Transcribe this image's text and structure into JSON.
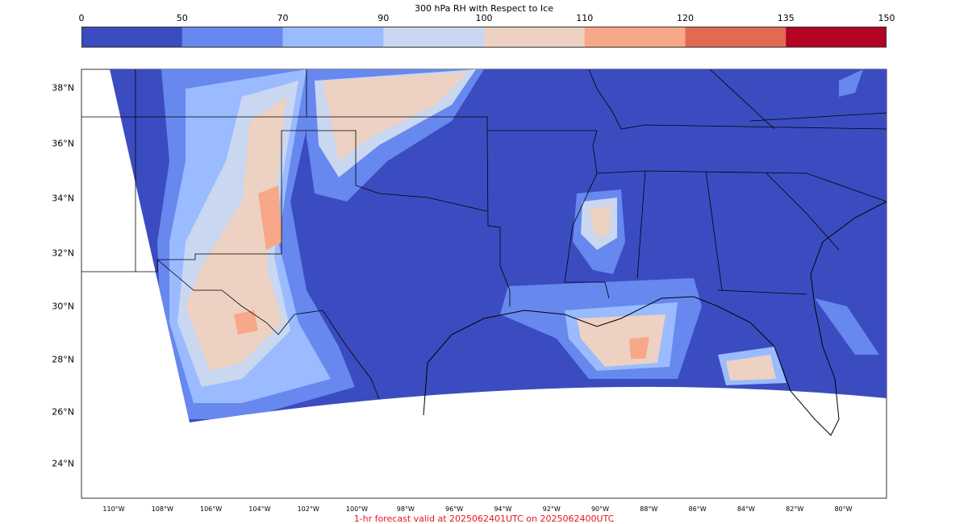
{
  "colorbar": {
    "title": "300 hPa RH with Respect to Ice",
    "ticks": [
      "0",
      "50",
      "70",
      "90",
      "100",
      "110",
      "120",
      "135",
      "150"
    ],
    "colors": [
      "#3b4cc0",
      "#6788ee",
      "#9abbff",
      "#c9d7f0",
      "#edd1c2",
      "#f7a889",
      "#e26952",
      "#b40426"
    ]
  },
  "axes": {
    "lat_labels": [
      "38°N",
      "36°N",
      "34°N",
      "32°N",
      "30°N",
      "28°N",
      "26°N",
      "24°N"
    ],
    "lon_labels": [
      "110°W",
      "108°W",
      "106°W",
      "104°W",
      "102°W",
      "100°W",
      "98°W",
      "96°W",
      "94°W",
      "92°W",
      "90°W",
      "88°W",
      "86°W",
      "84°W",
      "82°W",
      "80°W"
    ]
  },
  "caption": "1-hr forecast valid at 2025062401UTC on 2025062400UTC",
  "map_colors": {
    "background": "#3b4cc0",
    "outside": "#ffffff",
    "borders": "#000000"
  }
}
